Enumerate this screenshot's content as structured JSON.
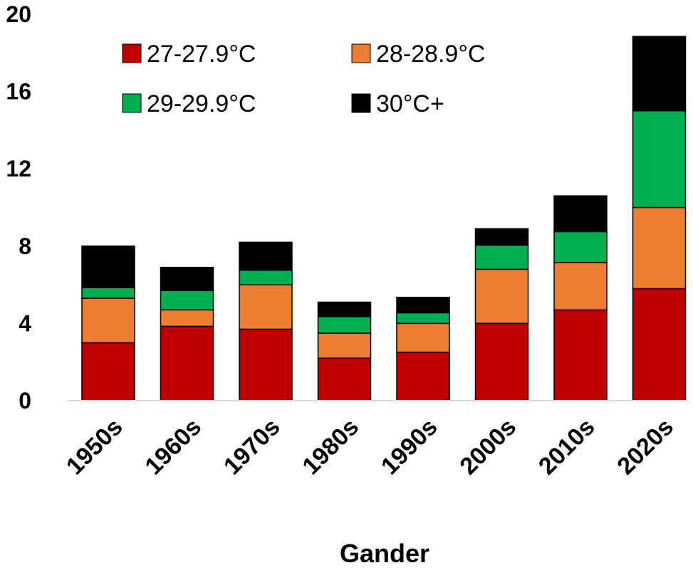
{
  "chart_data": {
    "type": "bar",
    "stacked": true,
    "title": "",
    "xlabel": "Gander",
    "ylabel": "",
    "ylim": [
      0,
      20
    ],
    "yticks": [
      0,
      4,
      8,
      12,
      16,
      20
    ],
    "categories": [
      "1950s",
      "1960s",
      "1970s",
      "1980s",
      "1990s",
      "2000s",
      "2010s",
      "2020s"
    ],
    "series": [
      {
        "name": "27-27.9°C",
        "color": "#c00000",
        "values": [
          3.0,
          3.85,
          3.7,
          2.2,
          2.5,
          4.0,
          4.7,
          5.8
        ]
      },
      {
        "name": "28-28.9°C",
        "color": "#ed7d31",
        "values": [
          2.3,
          0.85,
          2.3,
          1.3,
          1.5,
          2.8,
          2.45,
          4.2
        ]
      },
      {
        "name": "29-29.9°C",
        "color": "#00b050",
        "values": [
          0.55,
          1.0,
          0.75,
          0.85,
          0.55,
          1.25,
          1.6,
          5.0
        ]
      },
      {
        "name": "30°C+",
        "color": "#000000",
        "values": [
          2.15,
          1.2,
          1.45,
          0.75,
          0.8,
          0.85,
          1.85,
          3.85
        ]
      }
    ],
    "legend": {
      "placement": "top-left"
    },
    "grid": false
  }
}
